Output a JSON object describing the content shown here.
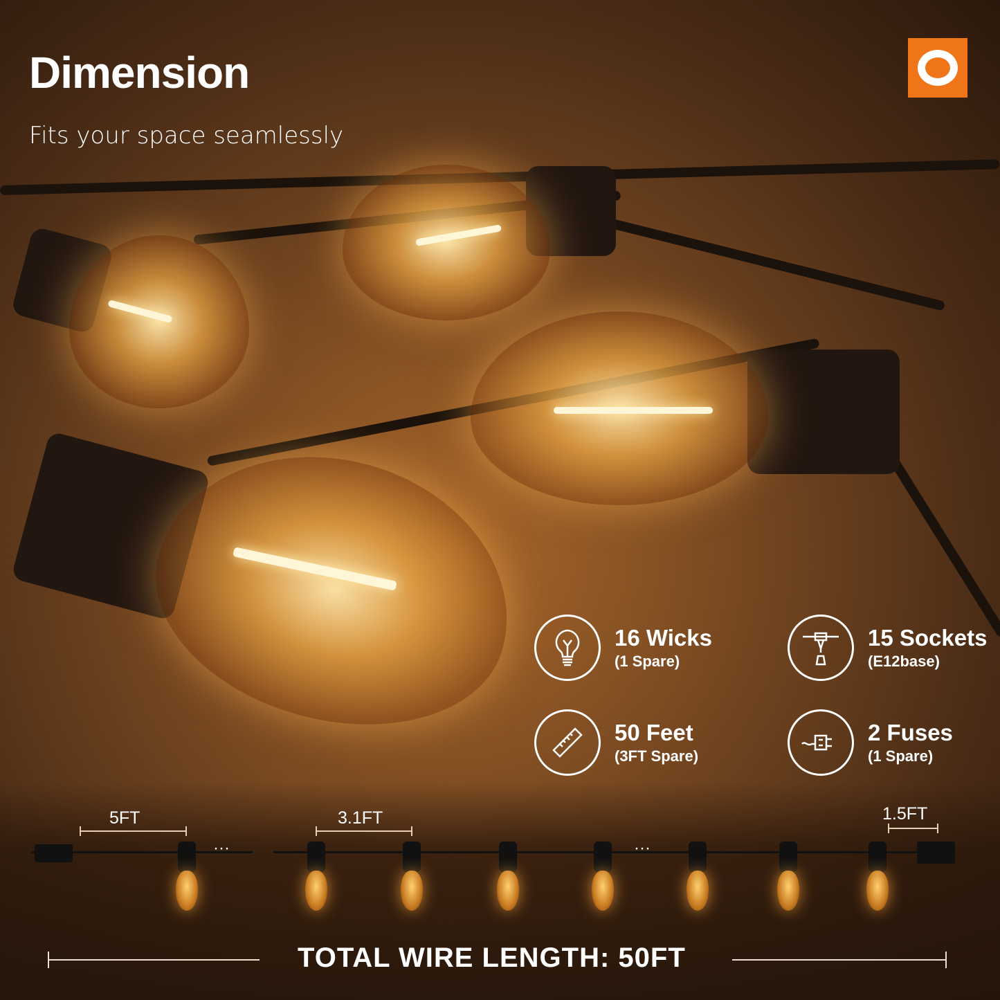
{
  "header": {
    "title": "Dimension",
    "subtitle": "Fits your space seamlessly"
  },
  "logo": {
    "brand_color": "#f07418",
    "icon": "brand-ring-logo"
  },
  "features": [
    {
      "icon": "lightbulb-icon",
      "title": "16 Wicks",
      "note": "(1 Spare)"
    },
    {
      "icon": "socket-icon",
      "title": "15 Sockets",
      "note": "(E12base)"
    },
    {
      "icon": "ruler-icon",
      "title": "50 Feet",
      "note": "(3FT Spare)"
    },
    {
      "icon": "plug-fuse-icon",
      "title": "2 Fuses",
      "note": "(1 Spare)"
    }
  ],
  "diagram": {
    "lead_length": "5FT",
    "spacing": "3.1FT",
    "tail_length": "1.5FT",
    "ellipsis": "···",
    "total_label": "TOTAL WIRE LENGTH: 50FT"
  }
}
